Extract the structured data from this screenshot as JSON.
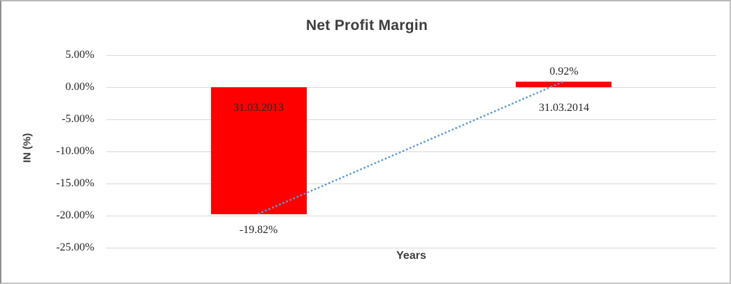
{
  "window": {
    "background": "#ffffff",
    "border_color": "#b9b9b9"
  },
  "chart_data": {
    "type": "bar",
    "title": "Net Profit Margin",
    "xlabel": "Years",
    "ylabel": "IN (%)",
    "categories": [
      "31.03.2013",
      "31.03.2014"
    ],
    "series": [
      {
        "name": "Net Profit Margin",
        "values": [
          -19.82,
          0.92
        ]
      }
    ],
    "data_labels": [
      "-19.82%",
      "0.92%"
    ],
    "y_ticks": [
      {
        "value": 5,
        "label": "5.00%"
      },
      {
        "value": 0,
        "label": "0.00%"
      },
      {
        "value": -5,
        "label": "-5.00%"
      },
      {
        "value": -10,
        "label": "-10.00%"
      },
      {
        "value": -15,
        "label": "-15.00%"
      },
      {
        "value": -20,
        "label": "-20.00%"
      },
      {
        "value": -25,
        "label": "-25.00%"
      }
    ],
    "ylim": [
      -25,
      5
    ],
    "grid": "horizontal",
    "legend": "none",
    "colors": {
      "bar": "#ff0000",
      "trendline": "#5b9bd5",
      "gridline": "#d9d9d9",
      "title_text": "#3d3d3d",
      "label_text": "#262626"
    },
    "trendline": {
      "style": "dotted",
      "from_value": -19.82,
      "to_value": 0.92
    }
  }
}
